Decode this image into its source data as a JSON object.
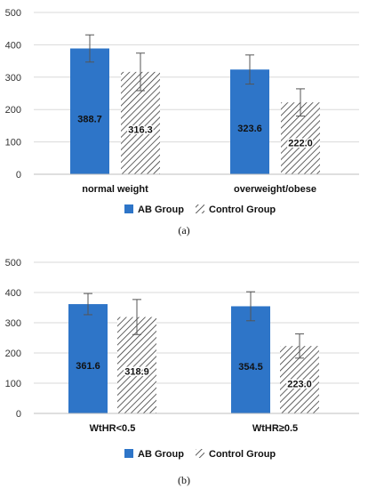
{
  "colors": {
    "ab": "#2E75C8",
    "control_stroke": "#3a3a3a",
    "grid": "#d9d9d9",
    "error": "#555555"
  },
  "chart_data": [
    {
      "type": "bar",
      "categories": [
        "normal weight",
        "overweight/obese"
      ],
      "series": [
        {
          "name": "AB Group",
          "values": [
            388.7,
            323.6
          ],
          "errors": [
            42,
            45
          ],
          "labels": [
            "388.7",
            "323.6"
          ]
        },
        {
          "name": "Control Group",
          "values": [
            316.3,
            222.0
          ],
          "errors": [
            58,
            42
          ],
          "labels": [
            "316.3",
            "222.0"
          ]
        }
      ],
      "ylim": [
        0,
        500
      ],
      "yticks": [
        "0",
        "100",
        "200",
        "300",
        "400",
        "500"
      ],
      "grid": true,
      "legend": "bottom",
      "caption": "(a)"
    },
    {
      "type": "bar",
      "categories": [
        "WtHR<0.5",
        "WtHR≥0.5"
      ],
      "series": [
        {
          "name": "AB Group",
          "values": [
            361.6,
            354.5
          ],
          "errors": [
            35,
            48
          ],
          "labels": [
            "361.6",
            "354.5"
          ]
        },
        {
          "name": "Control Group",
          "values": [
            318.9,
            223.0
          ],
          "errors": [
            58,
            40
          ],
          "labels": [
            "318.9",
            "223.0"
          ]
        }
      ],
      "ylim": [
        0,
        500
      ],
      "yticks": [
        "0",
        "100",
        "200",
        "300",
        "400",
        "500"
      ],
      "grid": true,
      "legend": "bottom",
      "caption": "(b)"
    }
  ]
}
